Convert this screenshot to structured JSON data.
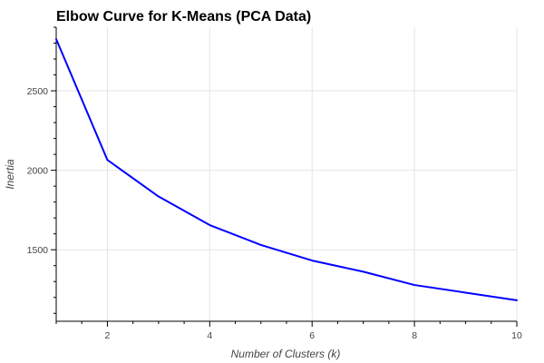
{
  "chart_data": {
    "type": "line",
    "title": "Elbow Curve for K-Means (PCA Data)",
    "xlabel": "Number of Clusters (k)",
    "ylabel": "Inertia",
    "x": [
      1,
      2,
      3,
      4,
      5,
      6,
      7,
      8,
      9,
      10
    ],
    "series": [
      {
        "values": [
          2825,
          2065,
          1835,
          1655,
          1530,
          1432,
          1362,
          1278,
          1230,
          1182
        ],
        "color": "#0000ff"
      }
    ],
    "xlim": [
      1,
      10
    ],
    "ylim": [
      1050,
      2900
    ],
    "x_major_ticks": [
      2,
      4,
      6,
      8,
      10
    ],
    "y_major_ticks": [
      1500,
      2000,
      2500
    ],
    "grid": true,
    "legend": "none"
  }
}
